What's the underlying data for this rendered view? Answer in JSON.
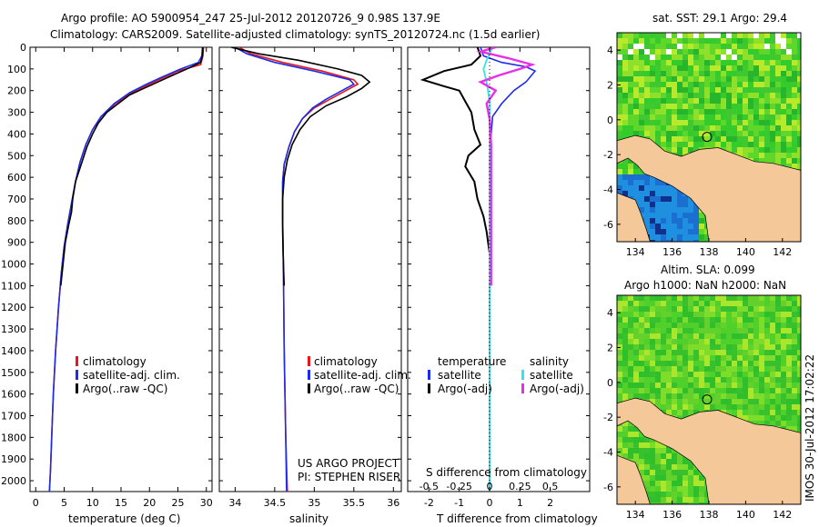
{
  "header": {
    "title_line1": "Argo profile: AO 5900954_247 25-Jul-2012 20120726_9 0.98S 137.9E",
    "title_line2": "Climatology: CARS2009. Satellite-adjusted climatology: synTS_20120724.nc (1.5d earlier)"
  },
  "side_text": {
    "project": "US ARGO PROJECT",
    "pi": "PI: STEPHEN RISER",
    "timestamp": "IMOS 30-Jul-2012 17:02:22"
  },
  "colors": {
    "climatology": "#e8161d",
    "satellite": "#1d2ce8",
    "argo": "#000000",
    "sal_satellite": "#2ee6ee",
    "sal_argo": "#e62fe6",
    "land": "#f5c89a",
    "sea_deep": "#1a6fd0"
  },
  "chart_data": [
    {
      "type": "line",
      "name": "temperature",
      "xlabel": "temperature (deg C)",
      "xlim": [
        -1,
        31
      ],
      "ylim": [
        2050,
        0
      ],
      "x_ticks": [
        0,
        5,
        10,
        15,
        20,
        25,
        30
      ],
      "y_ticks": [
        0,
        100,
        200,
        300,
        400,
        500,
        600,
        700,
        800,
        900,
        1000,
        1100,
        1200,
        1300,
        1400,
        1500,
        1600,
        1700,
        1800,
        1900,
        2000
      ],
      "legend": [
        "climatology",
        "satellite-adj. clim.",
        "Argo(..raw -QC)"
      ],
      "legend_position": "lower-left",
      "series": [
        {
          "name": "climatology",
          "points": [
            [
              29.5,
              0
            ],
            [
              29.4,
              40
            ],
            [
              29.0,
              80
            ],
            [
              25.0,
              110
            ],
            [
              22.5,
              140
            ],
            [
              20.0,
              170
            ],
            [
              17.0,
              210
            ],
            [
              14.0,
              260
            ],
            [
              11.5,
              320
            ],
            [
              10.0,
              380
            ],
            [
              8.8,
              450
            ],
            [
              7.8,
              530
            ],
            [
              7.0,
              620
            ],
            [
              6.3,
              720
            ],
            [
              5.6,
              820
            ],
            [
              5.0,
              920
            ],
            [
              4.5,
              1040
            ],
            [
              4.0,
              1200
            ],
            [
              3.5,
              1400
            ],
            [
              3.1,
              1600
            ],
            [
              2.8,
              1800
            ],
            [
              2.6,
              1950
            ],
            [
              2.4,
              2050
            ]
          ]
        },
        {
          "name": "satellite-adj. clim.",
          "points": [
            [
              29.3,
              0
            ],
            [
              29.2,
              40
            ],
            [
              28.6,
              70
            ],
            [
              25.5,
              100
            ],
            [
              22.0,
              140
            ],
            [
              19.5,
              170
            ],
            [
              16.5,
              210
            ],
            [
              13.8,
              260
            ],
            [
              11.5,
              320
            ],
            [
              10.0,
              380
            ],
            [
              8.8,
              450
            ],
            [
              7.8,
              530
            ],
            [
              7.0,
              620
            ],
            [
              6.3,
              720
            ],
            [
              5.6,
              820
            ],
            [
              5.0,
              920
            ],
            [
              4.5,
              1040
            ],
            [
              4.0,
              1200
            ],
            [
              3.5,
              1400
            ],
            [
              3.1,
              1600
            ],
            [
              2.8,
              1800
            ],
            [
              2.6,
              1950
            ],
            [
              2.4,
              2050
            ]
          ]
        },
        {
          "name": "Argo(..raw -QC)",
          "points": [
            [
              29.4,
              0
            ],
            [
              29.3,
              40
            ],
            [
              29.0,
              70
            ],
            [
              27.0,
              95
            ],
            [
              24.0,
              130
            ],
            [
              21.5,
              160
            ],
            [
              19.0,
              190
            ],
            [
              16.5,
              220
            ],
            [
              14.5,
              260
            ],
            [
              12.5,
              300
            ],
            [
              11.0,
              350
            ],
            [
              10.0,
              400
            ],
            [
              9.0,
              460
            ],
            [
              8.0,
              540
            ],
            [
              7.0,
              620
            ],
            [
              6.5,
              700
            ],
            [
              6.3,
              760
            ],
            [
              5.8,
              820
            ],
            [
              5.2,
              900
            ],
            [
              4.8,
              1000
            ],
            [
              4.4,
              1100
            ]
          ]
        }
      ]
    },
    {
      "type": "line",
      "name": "salinity",
      "xlabel": "salinity",
      "xlim": [
        33.8,
        36.1
      ],
      "ylim": [
        2050,
        0
      ],
      "x_ticks": [
        34,
        34.5,
        35,
        35.5,
        36
      ],
      "legend": [
        "climatology",
        "satellite-adj. clim.",
        "Argo(..raw -QC)"
      ],
      "legend_position": "lower-left",
      "series": [
        {
          "name": "climatology",
          "points": [
            [
              34.05,
              0
            ],
            [
              34.2,
              30
            ],
            [
              34.6,
              70
            ],
            [
              35.1,
              110
            ],
            [
              35.5,
              150
            ],
            [
              35.55,
              170
            ],
            [
              35.4,
              200
            ],
            [
              35.2,
              240
            ],
            [
              35.0,
              280
            ],
            [
              34.85,
              330
            ],
            [
              34.75,
              390
            ],
            [
              34.68,
              460
            ],
            [
              34.62,
              540
            ],
            [
              34.6,
              620
            ],
            [
              34.6,
              800
            ],
            [
              34.61,
              1000
            ],
            [
              34.62,
              1400
            ],
            [
              34.64,
              1800
            ],
            [
              34.66,
              2050
            ]
          ]
        },
        {
          "name": "satellite-adj. clim.",
          "points": [
            [
              34.0,
              0
            ],
            [
              34.15,
              30
            ],
            [
              34.5,
              70
            ],
            [
              35.0,
              110
            ],
            [
              35.45,
              150
            ],
            [
              35.5,
              170
            ],
            [
              35.35,
              200
            ],
            [
              35.15,
              240
            ],
            [
              34.98,
              280
            ],
            [
              34.85,
              330
            ],
            [
              34.75,
              390
            ],
            [
              34.68,
              460
            ],
            [
              34.62,
              540
            ],
            [
              34.6,
              620
            ],
            [
              34.6,
              800
            ],
            [
              34.61,
              1000
            ],
            [
              34.62,
              1400
            ],
            [
              34.64,
              1800
            ],
            [
              34.65,
              2050
            ]
          ]
        },
        {
          "name": "Argo(..raw -QC)",
          "points": [
            [
              33.95,
              0
            ],
            [
              34.3,
              30
            ],
            [
              34.8,
              60
            ],
            [
              35.3,
              100
            ],
            [
              35.6,
              130
            ],
            [
              35.7,
              160
            ],
            [
              35.6,
              190
            ],
            [
              35.4,
              230
            ],
            [
              35.15,
              270
            ],
            [
              34.95,
              320
            ],
            [
              34.82,
              380
            ],
            [
              34.72,
              450
            ],
            [
              34.66,
              520
            ],
            [
              34.62,
              600
            ],
            [
              34.6,
              700
            ],
            [
              34.6,
              850
            ],
            [
              34.61,
              1000
            ],
            [
              34.62,
              1100
            ]
          ]
        }
      ]
    },
    {
      "type": "line",
      "name": "difference",
      "xlabel": "T difference from climatology",
      "xlabel_top": "S difference from climatology",
      "xlim": [
        -2.7,
        3.3
      ],
      "ylim": [
        2050,
        0
      ],
      "x_ticks": [
        -2,
        -1,
        0,
        1,
        2
      ],
      "x_ticks_top": [
        "-0.5",
        "-0.25",
        "0",
        "0.25",
        "0.5"
      ],
      "legend_temperature": {
        "heading": "temperature",
        "items": [
          "satellite",
          "Argo(-adj)"
        ]
      },
      "legend_salinity": {
        "heading": "salinity",
        "items": [
          "satellite",
          "Argo(-adj)"
        ]
      },
      "series": [
        {
          "name": "temperature satellite",
          "points": [
            [
              -0.3,
              0
            ],
            [
              -0.2,
              40
            ],
            [
              0.4,
              70
            ],
            [
              1.2,
              90
            ],
            [
              1.5,
              110
            ],
            [
              1.2,
              160
            ],
            [
              0.8,
              200
            ],
            [
              0.4,
              260
            ],
            [
              0.1,
              320
            ],
            [
              0.05,
              400
            ],
            [
              0,
              500
            ],
            [
              0,
              700
            ],
            [
              0,
              1000
            ],
            [
              0,
              1500
            ],
            [
              0,
              2050
            ]
          ]
        },
        {
          "name": "temperature Argo(-adj)",
          "points": [
            [
              -0.4,
              0
            ],
            [
              -0.3,
              40
            ],
            [
              -0.6,
              80
            ],
            [
              -1.5,
              110
            ],
            [
              -2.2,
              150
            ],
            [
              -1.5,
              180
            ],
            [
              -1.0,
              200
            ],
            [
              -0.8,
              250
            ],
            [
              -0.6,
              300
            ],
            [
              -0.5,
              380
            ],
            [
              -0.3,
              450
            ],
            [
              -0.7,
              500
            ],
            [
              -0.8,
              550
            ],
            [
              -0.5,
              620
            ],
            [
              -0.4,
              700
            ],
            [
              -0.2,
              780
            ],
            [
              -0.1,
              850
            ],
            [
              0,
              950
            ],
            [
              0.05,
              1000
            ],
            [
              0,
              1100
            ]
          ]
        },
        {
          "name": "salinity satellite",
          "points": [
            [
              0.1,
              0
            ],
            [
              -0.1,
              60
            ],
            [
              -0.2,
              100
            ],
            [
              -0.1,
              160
            ],
            [
              0,
              250
            ],
            [
              0,
              400
            ],
            [
              0,
              700
            ],
            [
              0,
              1200
            ],
            [
              0,
              2050
            ]
          ]
        },
        {
          "name": "salinity Argo(-adj)",
          "points": [
            [
              0.2,
              0
            ],
            [
              -0.3,
              20
            ],
            [
              0.6,
              50
            ],
            [
              1.4,
              80
            ],
            [
              1.0,
              100
            ],
            [
              0.3,
              130
            ],
            [
              -0.3,
              160
            ],
            [
              0.2,
              200
            ],
            [
              -0.1,
              260
            ],
            [
              0,
              330
            ],
            [
              0.05,
              450
            ],
            [
              0.05,
              700
            ],
            [
              0.05,
              1000
            ],
            [
              0.05,
              1100
            ]
          ]
        }
      ]
    },
    {
      "type": "heatmap",
      "name": "sst map",
      "title": "sat. SST: 29.1  Argo: 29.4",
      "xlim": [
        133,
        143
      ],
      "ylim": [
        -7,
        5
      ],
      "x_ticks": [
        134,
        136,
        138,
        140,
        142
      ],
      "y_ticks": [
        4,
        2,
        0,
        -2,
        -4,
        -6
      ],
      "float_position": [
        137.9,
        -0.98
      ]
    },
    {
      "type": "heatmap",
      "name": "sla map",
      "title": "Altim. SLA: 0.099",
      "subtitle": "Argo h1000: NaN h2000: NaN",
      "xlim": [
        133,
        143
      ],
      "ylim": [
        -7,
        5
      ],
      "x_ticks": [
        134,
        136,
        138,
        140,
        142
      ],
      "y_ticks": [
        4,
        2,
        0,
        -2,
        -4,
        -6
      ],
      "float_position": [
        137.9,
        -0.98
      ]
    }
  ]
}
